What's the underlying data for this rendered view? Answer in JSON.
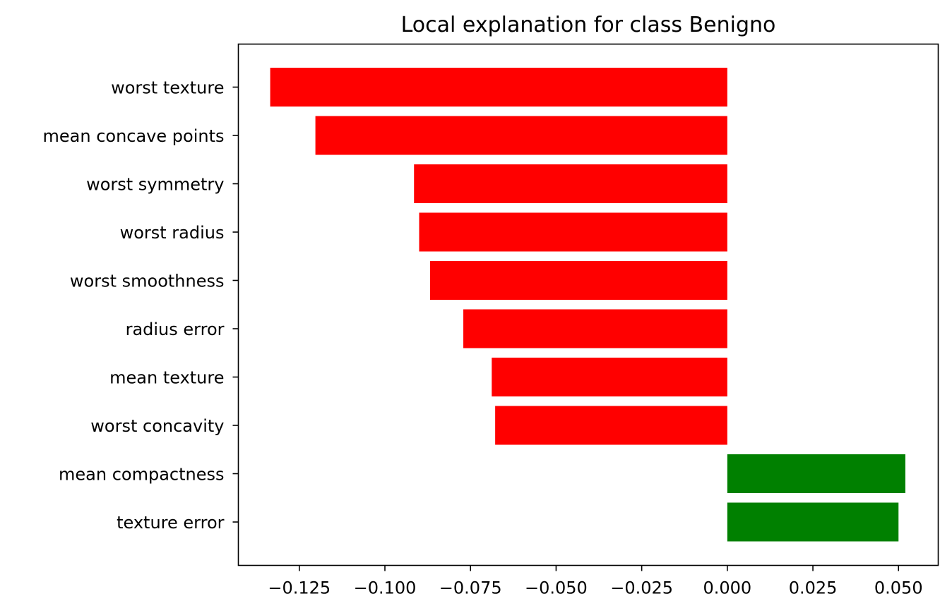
{
  "chart_data": {
    "type": "bar",
    "orientation": "horizontal",
    "title": "Local explanation for class Benigno",
    "xlabel": "",
    "ylabel": "",
    "categories": [
      "worst texture",
      "mean concave points",
      "worst symmetry",
      "worst radius",
      "worst smoothness",
      "radius error",
      "mean texture",
      "worst concavity",
      "mean compactness",
      "texture error"
    ],
    "values": [
      -0.1335,
      -0.1203,
      -0.0915,
      -0.09,
      -0.0868,
      -0.0771,
      -0.0688,
      -0.0678,
      0.052,
      0.05
    ],
    "xlim": [
      -0.1428,
      0.0616
    ],
    "xticks": [
      -0.125,
      -0.1,
      -0.075,
      -0.05,
      -0.025,
      0.0,
      0.025,
      0.05
    ],
    "xtick_labels": [
      "−0.125",
      "−0.100",
      "−0.075",
      "−0.050",
      "−0.025",
      "0.000",
      "0.025",
      "0.050"
    ],
    "colors": {
      "negative": "#ff0000",
      "positive": "#008000"
    },
    "grid": false,
    "legend": null
  }
}
